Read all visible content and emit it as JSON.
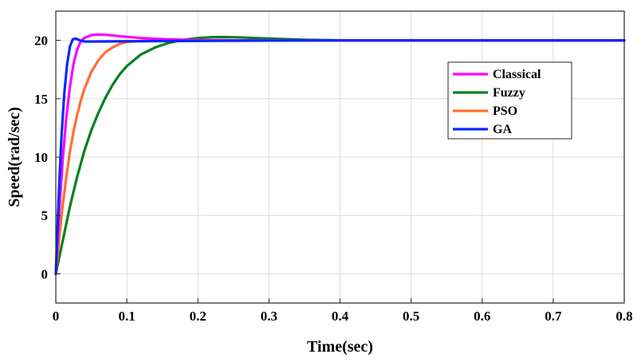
{
  "chart_data": {
    "type": "line",
    "xlabel": "Time(sec)",
    "ylabel": "Speed(rad/sec)",
    "xlim": [
      0,
      0.8
    ],
    "ylim": [
      -2.5,
      22.5
    ],
    "x_ticks": [
      "0",
      "0.1",
      "0.2",
      "0.3",
      "0.4",
      "0.5",
      "0.6",
      "0.7",
      "0.8"
    ],
    "y_ticks": [
      "0",
      "5",
      "10",
      "15",
      "20"
    ],
    "grid": true,
    "legend_position": "top-right",
    "series": [
      {
        "name": "Classical",
        "color": "#ff00ff",
        "x": [
          0,
          0.005,
          0.01,
          0.015,
          0.02,
          0.025,
          0.03,
          0.035,
          0.04,
          0.05,
          0.06,
          0.07,
          0.08,
          0.09,
          0.1,
          0.12,
          0.15,
          0.2,
          0.25,
          0.3,
          0.4,
          0.5,
          0.6,
          0.7,
          0.8
        ],
        "y": [
          0,
          5.5,
          10.0,
          13.5,
          16.1,
          18.0,
          19.2,
          19.9,
          20.2,
          20.45,
          20.5,
          20.48,
          20.42,
          20.35,
          20.3,
          20.2,
          20.1,
          20.02,
          20.0,
          20.0,
          20.0,
          20.0,
          20.0,
          20.0,
          20.0
        ]
      },
      {
        "name": "Fuzzy",
        "color": "#00821e",
        "x": [
          0,
          0.01,
          0.02,
          0.03,
          0.04,
          0.05,
          0.06,
          0.07,
          0.08,
          0.09,
          0.1,
          0.12,
          0.14,
          0.16,
          0.18,
          0.2,
          0.22,
          0.24,
          0.26,
          0.28,
          0.3,
          0.35,
          0.4,
          0.5,
          0.6,
          0.7,
          0.8
        ],
        "y": [
          0,
          2.9,
          5.8,
          8.3,
          10.5,
          12.3,
          13.8,
          15.1,
          16.2,
          17.1,
          17.8,
          18.8,
          19.4,
          19.8,
          20.05,
          20.2,
          20.27,
          20.28,
          20.25,
          20.2,
          20.15,
          20.05,
          20.0,
          20.0,
          20.0,
          20.0,
          20.0
        ]
      },
      {
        "name": "PSO",
        "color": "#ff6e32",
        "x": [
          0,
          0.005,
          0.01,
          0.015,
          0.02,
          0.025,
          0.03,
          0.035,
          0.04,
          0.05,
          0.06,
          0.07,
          0.08,
          0.09,
          0.1,
          0.12,
          0.14,
          0.16,
          0.2,
          0.3,
          0.4,
          0.5,
          0.6,
          0.7,
          0.8
        ],
        "y": [
          0,
          3.2,
          6.0,
          8.4,
          10.5,
          12.2,
          13.6,
          14.8,
          15.8,
          17.3,
          18.3,
          19.0,
          19.4,
          19.7,
          19.85,
          19.95,
          20.0,
          20.0,
          20.0,
          20.0,
          20.0,
          20.0,
          20.0,
          20.0,
          20.0
        ]
      },
      {
        "name": "GA",
        "color": "#0a28ff",
        "x": [
          0,
          0.004,
          0.008,
          0.012,
          0.016,
          0.02,
          0.024,
          0.028,
          0.032,
          0.036,
          0.04,
          0.05,
          0.1,
          0.2,
          0.3,
          0.4,
          0.5,
          0.6,
          0.7,
          0.8
        ],
        "y": [
          0,
          6.5,
          11.8,
          15.5,
          18.0,
          19.5,
          20.1,
          20.15,
          20.05,
          19.95,
          19.9,
          19.9,
          19.92,
          19.95,
          19.98,
          20.0,
          20.0,
          20.0,
          20.0,
          20.0
        ]
      }
    ]
  }
}
